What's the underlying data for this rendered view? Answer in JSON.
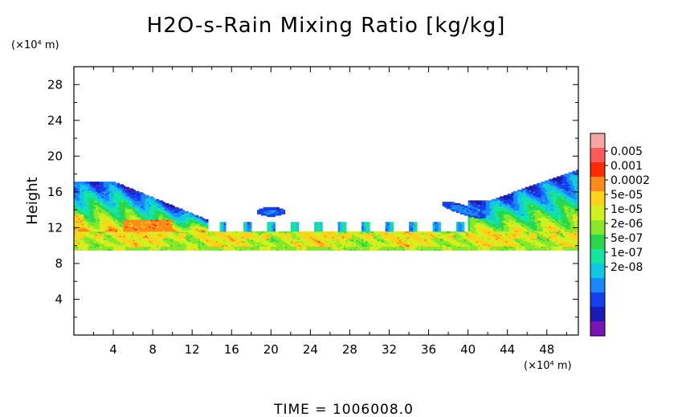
{
  "chart_data": {
    "type": "heatmap",
    "title": "H2O-s-Rain Mixing Ratio [kg/kg]",
    "ylabel": "Height",
    "xunit": "(×10⁴ m)",
    "yunit": "(×10⁴ m)",
    "xlim": [
      0,
      51.2
    ],
    "ylim": [
      0,
      30
    ],
    "xticks": [
      4,
      8,
      12,
      16,
      20,
      24,
      28,
      32,
      36,
      40,
      44,
      48
    ],
    "yticks": [
      4,
      8,
      12,
      16,
      20,
      24,
      28
    ],
    "colorbar": {
      "labels": [
        "0.005",
        "0.001",
        "0.0002",
        "5e-05",
        "1e-05",
        "2e-06",
        "5e-07",
        "1e-07",
        "2e-08"
      ],
      "colors": [
        "#f4a6a0",
        "#ff5a5a",
        "#ff2a00",
        "#ff8c1a",
        "#ffd21a",
        "#d2f01e",
        "#86e82a",
        "#28d84a",
        "#14e6a2",
        "#12c8e0",
        "#1a86ff",
        "#1440f0",
        "#1a1ab4",
        "#7a14b4"
      ]
    },
    "regions": [
      {
        "name": "base layer",
        "x": [
          0,
          51.2
        ],
        "y": [
          9.5,
          10.0
        ],
        "level": 6
      },
      {
        "name": "lower band",
        "x": [
          0,
          51.2
        ],
        "y": [
          10.0,
          11.5
        ],
        "level": 5
      },
      {
        "name": "left cloud",
        "x": [
          0,
          12
        ],
        "y": [
          10.5,
          17.5
        ],
        "level": 5
      },
      {
        "name": "right cloud",
        "x": [
          39,
          51.2
        ],
        "y": [
          10.5,
          18.5
        ],
        "level": 5
      },
      {
        "name": "left core",
        "x": [
          5,
          10
        ],
        "y": [
          11.5,
          13
        ],
        "level": 3
      },
      {
        "name": "patch near 20",
        "x": [
          18.5,
          21.5
        ],
        "y": [
          13.2,
          14.4
        ],
        "level": 11
      },
      {
        "name": "patch near 40",
        "x": [
          37.5,
          41.5
        ],
        "y": [
          13,
          15.5
        ],
        "level": 11
      }
    ]
  },
  "time_label": "TIME  =  1006008.0"
}
